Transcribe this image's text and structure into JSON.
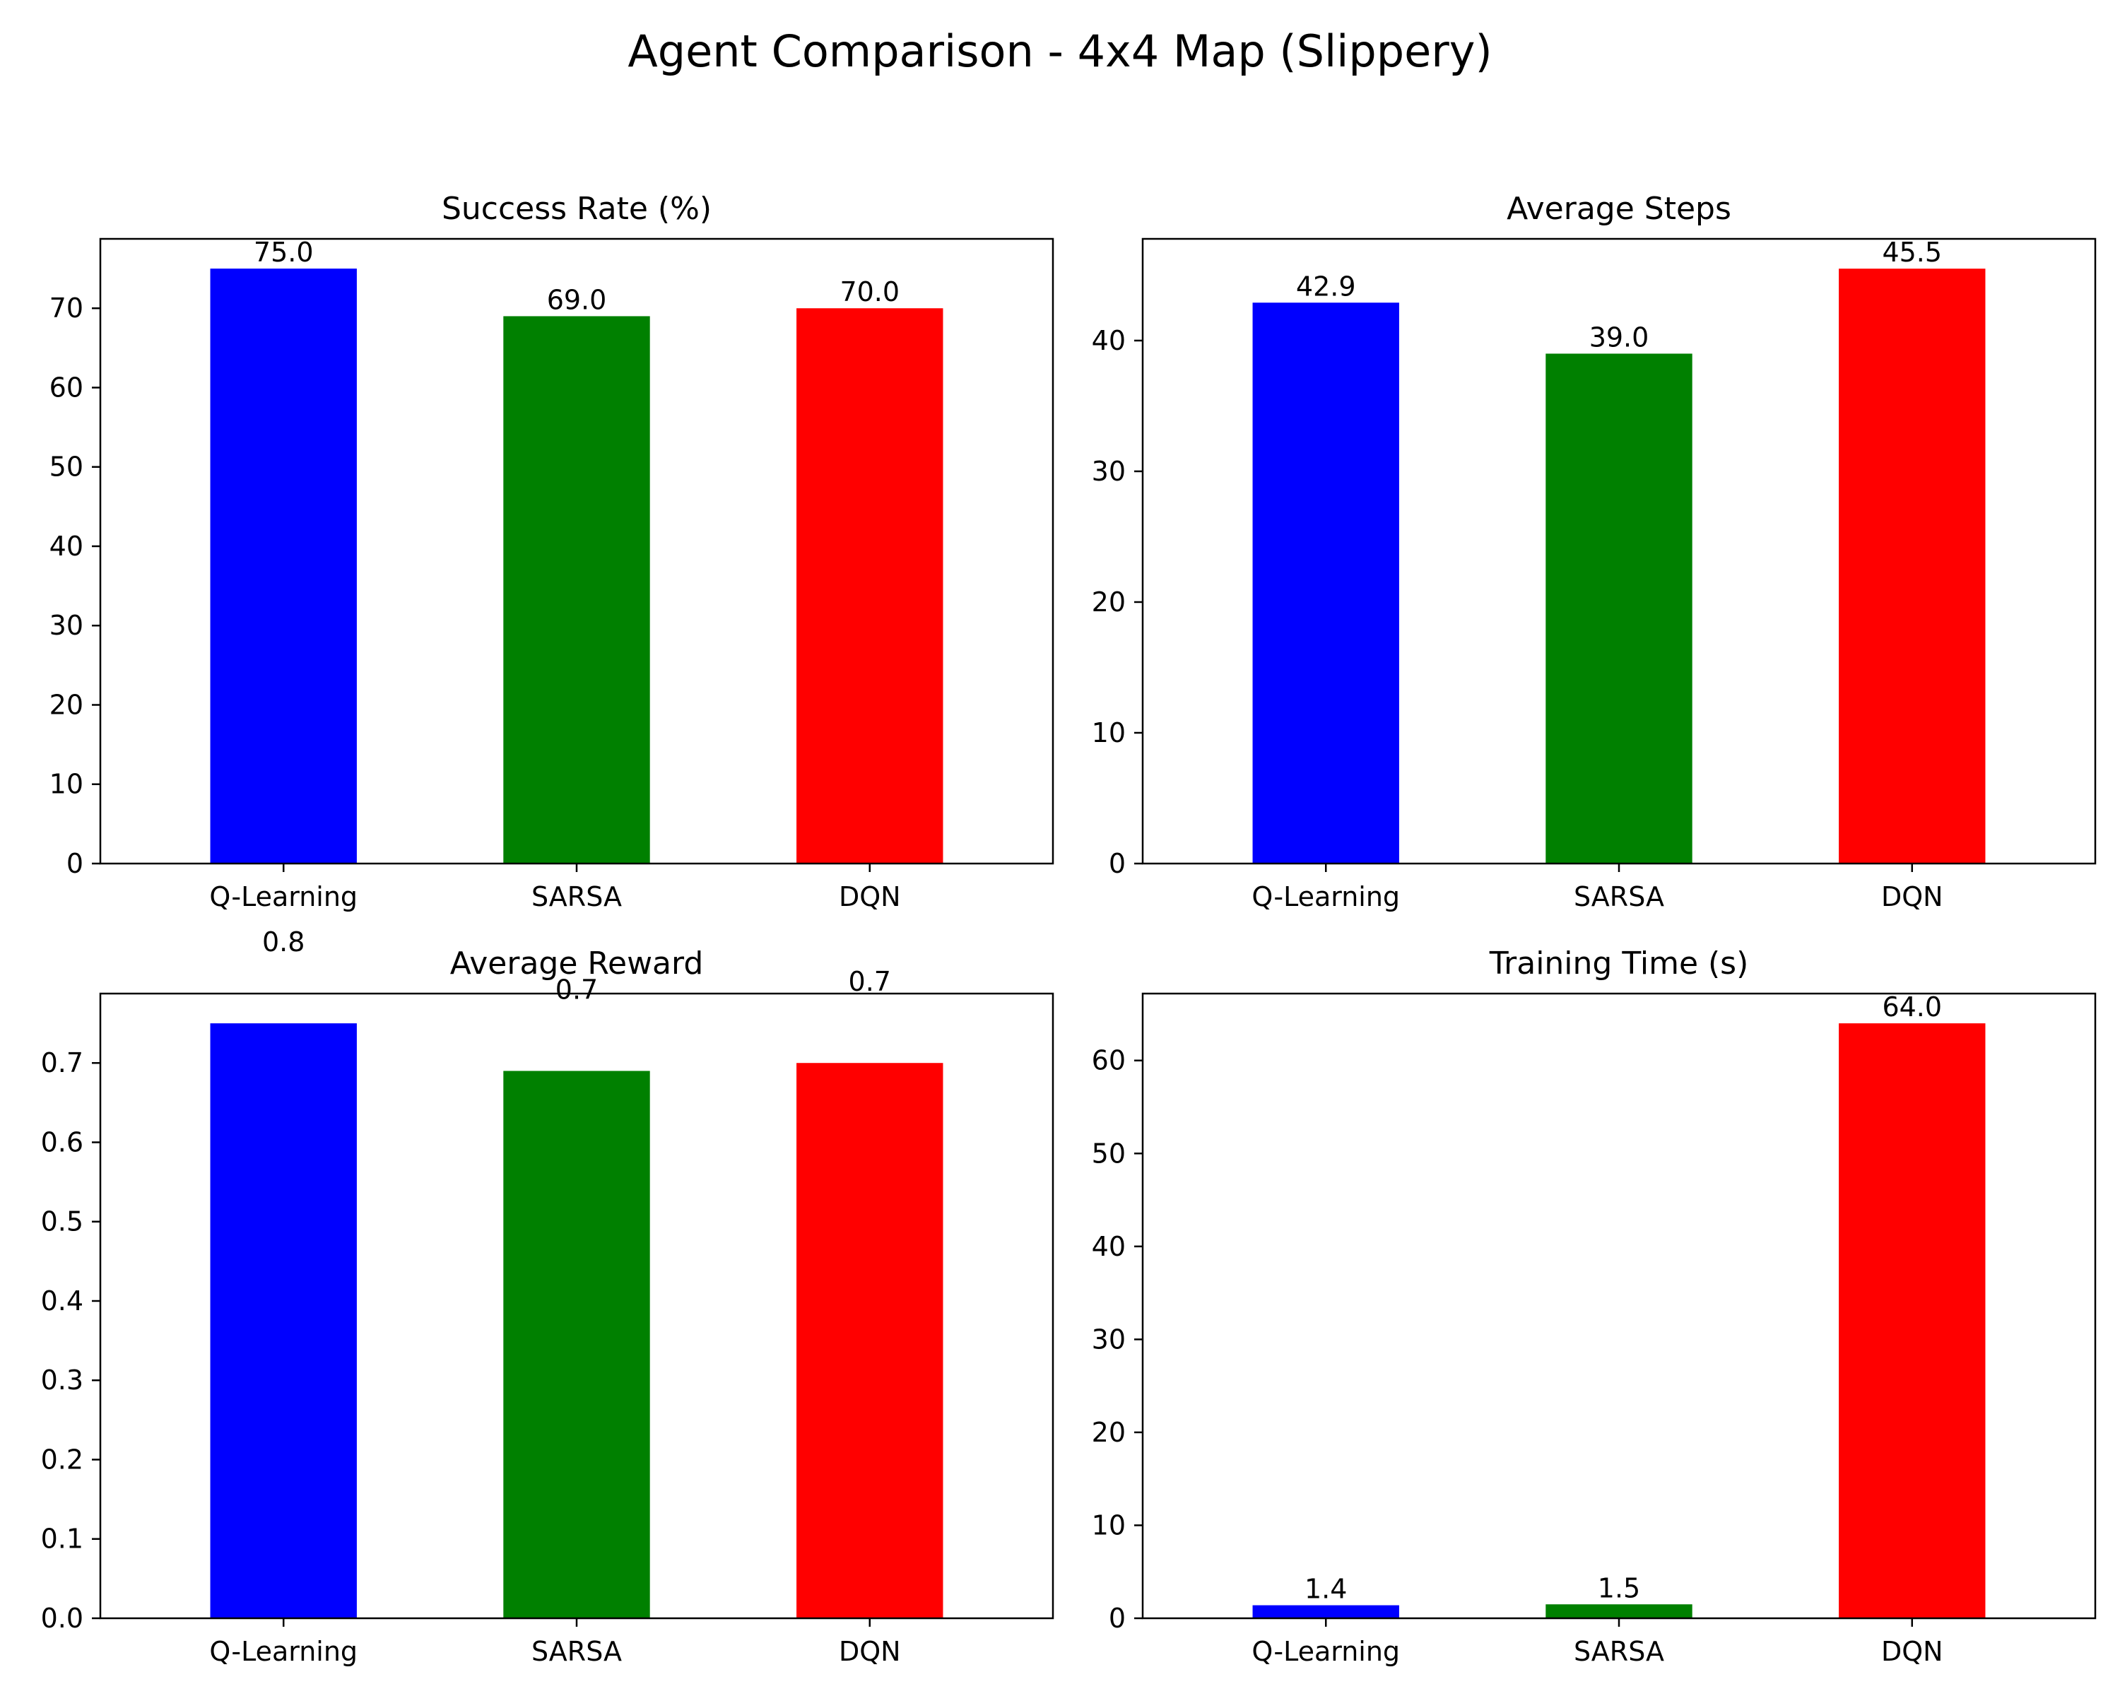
{
  "figure": {
    "title": "Agent Comparison - 4x4 Map (Slippery)"
  },
  "chart_data": [
    {
      "type": "bar",
      "title": "Success Rate (%)",
      "categories": [
        "Q-Learning",
        "SARSA",
        "DQN"
      ],
      "values": [
        75.0,
        69.0,
        70.0
      ],
      "data_labels": [
        "75.0",
        "69.0",
        "70.0"
      ],
      "colors": [
        "#0000ff",
        "#008000",
        "#ff0000"
      ],
      "ylim": [
        0,
        78.75
      ],
      "yticks": [
        0,
        10,
        20,
        30,
        40,
        50,
        60,
        70
      ],
      "ytick_labels": [
        "0",
        "10",
        "20",
        "30",
        "40",
        "50",
        "60",
        "70"
      ],
      "grid": false
    },
    {
      "type": "bar",
      "title": "Average Steps",
      "categories": [
        "Q-Learning",
        "SARSA",
        "DQN"
      ],
      "values": [
        42.9,
        39.0,
        45.5
      ],
      "data_labels": [
        "42.9",
        "39.0",
        "45.5"
      ],
      "colors": [
        "#0000ff",
        "#008000",
        "#ff0000"
      ],
      "ylim": [
        0,
        47.78
      ],
      "yticks": [
        0,
        10,
        20,
        30,
        40
      ],
      "ytick_labels": [
        "0",
        "10",
        "20",
        "30",
        "40"
      ],
      "grid": false
    },
    {
      "type": "bar",
      "title": "Average Reward",
      "categories": [
        "Q-Learning",
        "SARSA",
        "DQN"
      ],
      "values": [
        0.75,
        0.69,
        0.7
      ],
      "data_labels": [
        "0.8",
        "0.7",
        "0.7"
      ],
      "label_positions": [
        0.832,
        0.772,
        0.782
      ],
      "colors": [
        "#0000ff",
        "#008000",
        "#ff0000"
      ],
      "ylim": [
        0,
        0.7875
      ],
      "yticks": [
        0,
        0.1,
        0.2,
        0.3,
        0.4,
        0.5,
        0.6,
        0.7
      ],
      "ytick_labels": [
        "0.0",
        "0.1",
        "0.2",
        "0.3",
        "0.4",
        "0.5",
        "0.6",
        "0.7"
      ],
      "grid": false
    },
    {
      "type": "bar",
      "title": "Training Time (s)",
      "categories": [
        "Q-Learning",
        "SARSA",
        "DQN"
      ],
      "values": [
        1.4,
        1.5,
        64.0
      ],
      "data_labels": [
        "1.4",
        "1.5",
        "64.0"
      ],
      "colors": [
        "#0000ff",
        "#008000",
        "#ff0000"
      ],
      "ylim": [
        0,
        67.2
      ],
      "yticks": [
        0,
        10,
        20,
        30,
        40,
        50,
        60
      ],
      "ytick_labels": [
        "0",
        "10",
        "20",
        "30",
        "40",
        "50",
        "60"
      ],
      "grid": false
    }
  ]
}
